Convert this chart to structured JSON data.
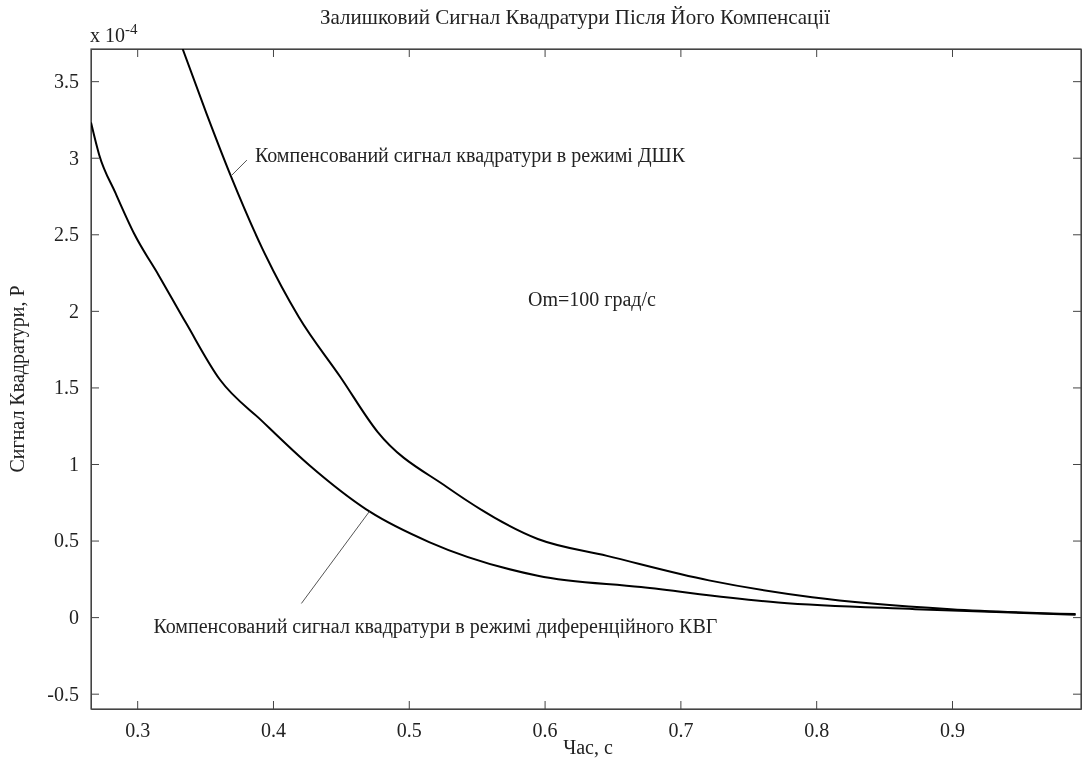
{
  "chart_data": {
    "type": "line",
    "title": "Залишковий Сигнал Квадратури Після Його Компенсації",
    "xlabel": "Час, с",
    "ylabel": "Сигнал Квадратури, Р",
    "xlim": [
      0.266,
      0.995
    ],
    "ylim": [
      -0.6,
      3.71
    ],
    "xticks": [
      0.3,
      0.4,
      0.5,
      0.6,
      0.7,
      0.8,
      0.9
    ],
    "yticks": [
      -0.5,
      0,
      0.5,
      1,
      1.5,
      2,
      2.5,
      3,
      3.5
    ],
    "annotations": [
      "x 10$^{-4}$",
      "Om=100 град/с"
    ],
    "series": [
      {
        "name": "Компенсований сигнал квадратури в режимі ДШК",
        "color": "#000000",
        "x": [
          0.3335,
          0.351,
          0.369,
          0.392,
          0.419,
          0.4495,
          0.477,
          0.528,
          0.595,
          0.646,
          0.721,
          0.797,
          0.899,
          0.991
        ],
        "values": [
          3.71,
          3.29,
          2.88,
          2.41,
          1.96,
          1.57,
          1.21,
          0.85,
          0.51,
          0.4,
          0.24,
          0.13,
          0.052,
          0.02
        ]
      },
      {
        "name": "Компенсований сигнал квадратури в режимі диференційного КВГ",
        "color": "#000000",
        "x": [
          0.266,
          0.272,
          0.284,
          0.298,
          0.316,
          0.336,
          0.361,
          0.392,
          0.427,
          0.471,
          0.515,
          0.595,
          0.671,
          0.772,
          0.873,
          0.991
        ],
        "values": [
          3.23,
          3.02,
          2.77,
          2.5,
          2.23,
          1.92,
          1.55,
          1.28,
          0.99,
          0.69,
          0.49,
          0.27,
          0.196,
          0.096,
          0.052,
          0.016
        ]
      }
    ]
  }
}
